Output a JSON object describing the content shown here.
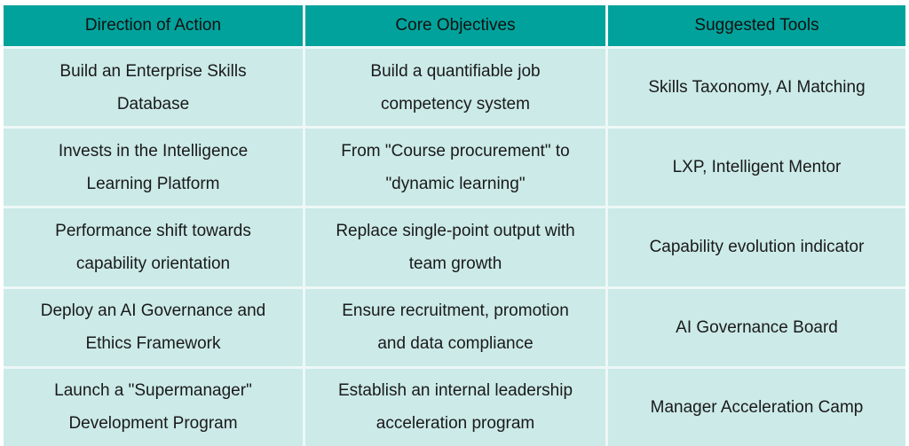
{
  "table": {
    "headers": [
      "Direction of Action",
      "Core Objectives",
      "Suggested Tools"
    ],
    "rows": [
      {
        "action": [
          "Build an Enterprise Skills",
          "Database"
        ],
        "objective": [
          "Build a quantifiable job",
          "competency system"
        ],
        "tools": [
          "Skills Taxonomy, AI Matching"
        ]
      },
      {
        "action": [
          "Invests in the Intelligence",
          "Learning Platform"
        ],
        "objective": [
          "From \"Course procurement\" to",
          "\"dynamic learning\""
        ],
        "tools": [
          "LXP, Intelligent Mentor"
        ]
      },
      {
        "action": [
          "Performance shift towards",
          "capability orientation"
        ],
        "objective": [
          "Replace single-point output with",
          "team growth"
        ],
        "tools": [
          "Capability evolution indicator"
        ]
      },
      {
        "action": [
          "Deploy an AI Governance and",
          "Ethics Framework"
        ],
        "objective": [
          "Ensure recruitment, promotion",
          "and data compliance"
        ],
        "tools": [
          "AI Governance Board"
        ]
      },
      {
        "action": [
          "Launch a \"Supermanager\"",
          "Development Program"
        ],
        "objective": [
          "Establish an internal leadership",
          "acceleration program"
        ],
        "tools": [
          "Manager Acceleration Camp"
        ]
      }
    ]
  },
  "colors": {
    "header_bg": "#01a29b",
    "cell_bg": "#cbeae8",
    "gap": "#eef8f7",
    "text": "#1a1a1a",
    "page_bg": "#ffffff"
  }
}
